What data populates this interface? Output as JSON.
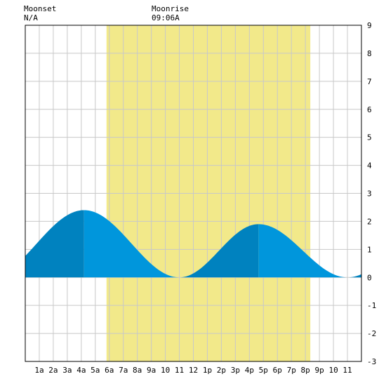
{
  "moon": {
    "moonset_label": "Moonset",
    "moonset_time": "N/A",
    "moonrise_label": "Moonrise",
    "moonrise_time": "09:06A"
  },
  "colors": {
    "daylight": "#f2e98a",
    "rising_tide": "#0082bf",
    "falling_tide": "#0096dc",
    "grid": "#c8c8c8",
    "background": "#ffffff"
  },
  "chart_data": {
    "type": "area",
    "xlim": [
      0,
      24
    ],
    "ylim": [
      -3,
      9
    ],
    "grid": true,
    "x_tick_labels": [
      {
        "x": 1,
        "label": "1a"
      },
      {
        "x": 2,
        "label": "2a"
      },
      {
        "x": 3,
        "label": "3a"
      },
      {
        "x": 4,
        "label": "4a"
      },
      {
        "x": 5,
        "label": "5a"
      },
      {
        "x": 6,
        "label": "6a"
      },
      {
        "x": 7,
        "label": "7a"
      },
      {
        "x": 8,
        "label": "8a"
      },
      {
        "x": 9,
        "label": "9a"
      },
      {
        "x": 10,
        "label": "10"
      },
      {
        "x": 11,
        "label": "11"
      },
      {
        "x": 12,
        "label": "12"
      },
      {
        "x": 13,
        "label": "1p"
      },
      {
        "x": 14,
        "label": "2p"
      },
      {
        "x": 15,
        "label": "3p"
      },
      {
        "x": 16,
        "label": "4p"
      },
      {
        "x": 17,
        "label": "5p"
      },
      {
        "x": 18,
        "label": "6p"
      },
      {
        "x": 19,
        "label": "7p"
      },
      {
        "x": 20,
        "label": "8p"
      },
      {
        "x": 21,
        "label": "9p"
      },
      {
        "x": 22,
        "label": "10"
      },
      {
        "x": 23,
        "label": "11"
      }
    ],
    "y_ticks": [
      -3,
      -2,
      -1,
      0,
      1,
      2,
      3,
      4,
      5,
      6,
      7,
      8,
      9
    ],
    "daylight": {
      "start": 5.8,
      "end": 20.35
    },
    "tide_extremes": [
      {
        "time": 4.2,
        "height": 2.4,
        "kind": "high"
      },
      {
        "time": 11.0,
        "height": 0.0,
        "kind": "low"
      },
      {
        "time": 16.65,
        "height": 1.9,
        "kind": "high"
      },
      {
        "time": 23.0,
        "height": 0.0,
        "kind": "low"
      }
    ],
    "start_height": 0.5,
    "end_height": 0.15
  }
}
